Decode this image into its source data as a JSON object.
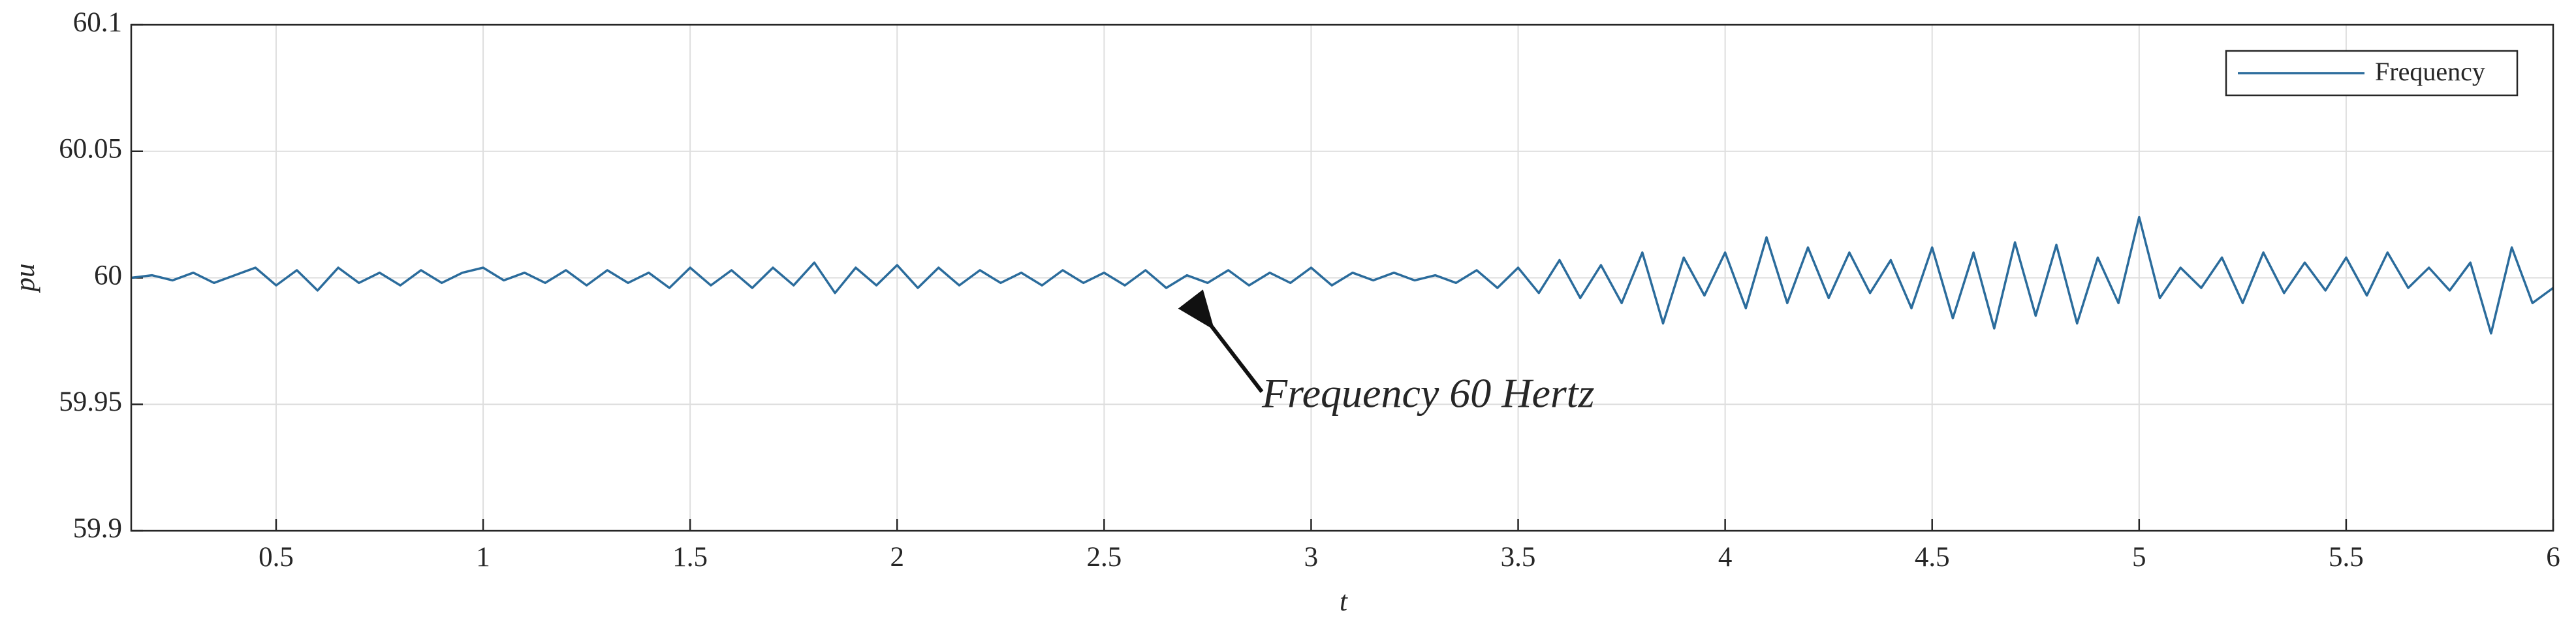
{
  "chart_data": {
    "type": "line",
    "x_label": "t",
    "y_label": "pu",
    "annotation": "Frequency 60 Hertz",
    "xlim": [
      0.15,
      6
    ],
    "xticks": [
      0.5,
      1,
      1.5,
      2,
      2.5,
      3,
      3.5,
      4,
      4.5,
      5,
      5.5,
      6
    ],
    "ylim": [
      59.9,
      60.1
    ],
    "yticks": [
      59.9,
      59.95,
      60,
      60.05,
      60.1
    ],
    "grid": true,
    "legend": "upper right",
    "x": [
      0.15,
      0.2,
      0.25,
      0.3,
      0.35,
      0.4,
      0.45,
      0.5,
      0.55,
      0.6,
      0.65,
      0.7,
      0.75,
      0.8,
      0.85,
      0.9,
      0.95,
      1.0,
      1.05,
      1.1,
      1.15,
      1.2,
      1.25,
      1.3,
      1.35,
      1.4,
      1.45,
      1.5,
      1.55,
      1.6,
      1.65,
      1.7,
      1.75,
      1.8,
      1.85,
      1.9,
      1.95,
      2.0,
      2.05,
      2.1,
      2.15,
      2.2,
      2.25,
      2.3,
      2.35,
      2.4,
      2.45,
      2.5,
      2.55,
      2.6,
      2.65,
      2.7,
      2.75,
      2.8,
      2.85,
      2.9,
      2.95,
      3.0,
      3.05,
      3.1,
      3.15,
      3.2,
      3.25,
      3.3,
      3.35,
      3.4,
      3.45,
      3.5,
      3.55,
      3.6,
      3.65,
      3.7,
      3.75,
      3.8,
      3.85,
      3.9,
      3.95,
      4.0,
      4.05,
      4.1,
      4.15,
      4.2,
      4.25,
      4.3,
      4.35,
      4.4,
      4.45,
      4.5,
      4.55,
      4.6,
      4.65,
      4.7,
      4.75,
      4.8,
      4.85,
      4.9,
      4.95,
      5.0,
      5.05,
      5.1,
      5.15,
      5.2,
      5.25,
      5.3,
      5.35,
      5.4,
      5.45,
      5.5,
      5.55,
      5.6,
      5.65,
      5.7,
      5.75,
      5.8,
      5.85,
      5.9,
      5.95,
      6.0
    ],
    "series": [
      {
        "name": "Frequency",
        "color": "#2b6c9c",
        "values": [
          60.0,
          60.001,
          59.999,
          60.002,
          59.998,
          60.001,
          60.004,
          59.997,
          60.003,
          59.995,
          60.004,
          59.998,
          60.002,
          59.997,
          60.003,
          59.998,
          60.002,
          60.004,
          59.999,
          60.002,
          59.998,
          60.003,
          59.997,
          60.003,
          59.998,
          60.002,
          59.996,
          60.004,
          59.997,
          60.003,
          59.996,
          60.004,
          59.997,
          60.006,
          59.994,
          60.004,
          59.997,
          60.005,
          59.996,
          60.004,
          59.997,
          60.003,
          59.998,
          60.002,
          59.997,
          60.003,
          59.998,
          60.002,
          59.997,
          60.003,
          59.996,
          60.001,
          59.998,
          60.003,
          59.997,
          60.002,
          59.998,
          60.004,
          59.997,
          60.002,
          59.999,
          60.002,
          59.999,
          60.001,
          59.998,
          60.003,
          59.996,
          60.004,
          59.994,
          60.007,
          59.992,
          60.005,
          59.99,
          60.01,
          59.982,
          60.008,
          59.993,
          60.01,
          59.988,
          60.016,
          59.99,
          60.012,
          59.992,
          60.01,
          59.994,
          60.007,
          59.988,
          60.012,
          59.984,
          60.01,
          59.98,
          60.014,
          59.985,
          60.013,
          59.982,
          60.008,
          59.99,
          60.024,
          59.992,
          60.004,
          59.996,
          60.008,
          59.99,
          60.01,
          59.994,
          60.006,
          59.995,
          60.008,
          59.993,
          60.01,
          59.996,
          60.004,
          59.995,
          60.006,
          59.978,
          60.012,
          59.99,
          59.996
        ]
      }
    ]
  }
}
